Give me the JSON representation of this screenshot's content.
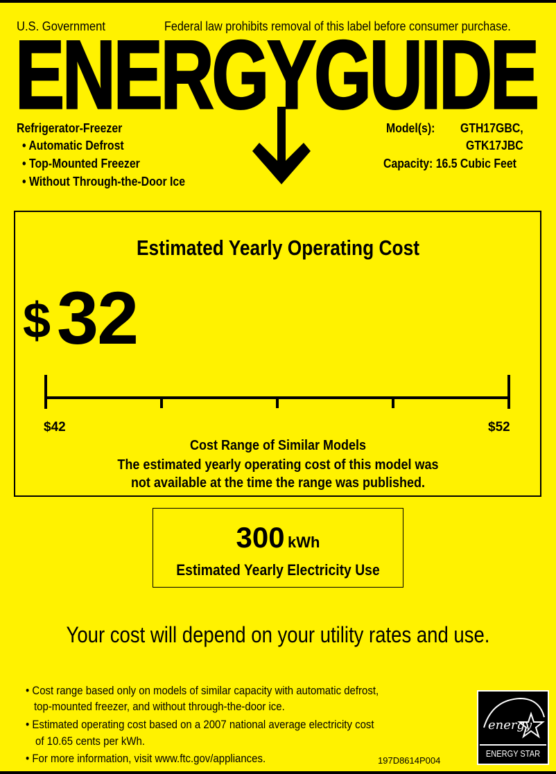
{
  "header": {
    "left": "U.S. Government",
    "right": "Federal law prohibits removal of this label before consumer purchase.",
    "logo": "ENERGYGUIDE"
  },
  "product": {
    "type": "Refrigerator-Freezer",
    "features": [
      "Automatic Defrost",
      "Top-Mounted Freezer",
      "Without Through-the-Door Ice"
    ],
    "models_label": "Model(s):",
    "models": [
      "GTH17GBC,",
      "GTK17JBC"
    ],
    "capacity": "Capacity: 16.5 Cubic Feet"
  },
  "cost": {
    "title": "Estimated Yearly Operating Cost",
    "currency": "$",
    "value": "32",
    "range_min": "$42",
    "range_max": "$52",
    "range_title": "Cost Range of Similar Models",
    "note_line1": "The estimated yearly operating cost of this model was",
    "note_line2": "not available at the time the range was published."
  },
  "electricity": {
    "value": "300",
    "unit": "kWh",
    "label": "Estimated Yearly Electricity Use"
  },
  "disclaimer": "Your cost will depend on your utility rates and use.",
  "footnotes": [
    {
      "l1": "• Cost range based only on models of similar capacity with automatic defrost,",
      "l2": "top-mounted freezer, and without through-the-door ice."
    },
    {
      "l1": "• Estimated operating cost based on a 2007 national average electricity cost",
      "l2": "of 10.65 cents per kWh."
    },
    {
      "l1": "• For more information, visit www.ftc.gov/appliances."
    }
  ],
  "code": "197D8614P004",
  "energy_star": {
    "script": "energy",
    "label": "ENERGY STAR"
  },
  "colors": {
    "background": "#FFF200",
    "ink": "#000000"
  }
}
